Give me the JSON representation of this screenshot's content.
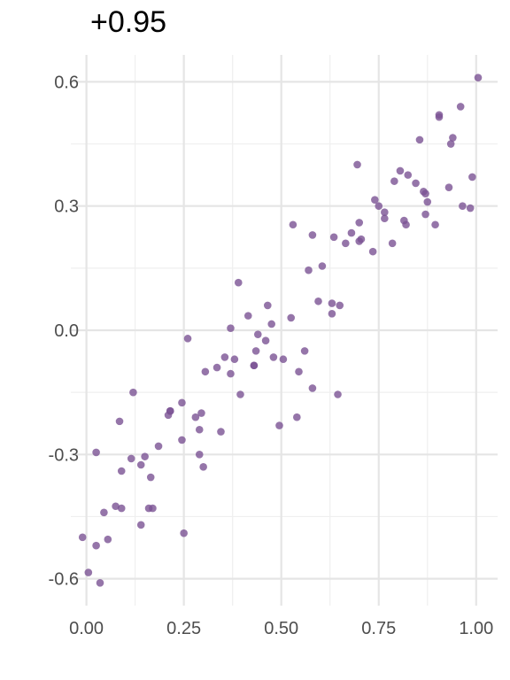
{
  "chart_data": {
    "type": "scatter",
    "title": "+0.95",
    "xlabel": "",
    "ylabel": "",
    "xlim": [
      -0.04,
      1.055
    ],
    "ylim": [
      -0.665,
      0.665
    ],
    "x_ticks": [
      0.0,
      0.25,
      0.5,
      0.75,
      1.0
    ],
    "x_tick_labels": [
      "0.00",
      "0.25",
      "0.50",
      "0.75",
      "1.00"
    ],
    "y_ticks": [
      -0.6,
      -0.3,
      0.0,
      0.3,
      0.6
    ],
    "y_tick_labels": [
      "-0.6",
      "-0.3",
      "0.0",
      "0.3",
      "0.6"
    ],
    "grid": true,
    "point_color": "#7b5394",
    "points": [
      [
        -0.01,
        -0.5
      ],
      [
        0.005,
        -0.585
      ],
      [
        0.025,
        -0.52
      ],
      [
        0.025,
        -0.295
      ],
      [
        0.035,
        -0.61
      ],
      [
        0.045,
        -0.44
      ],
      [
        0.055,
        -0.505
      ],
      [
        0.075,
        -0.425
      ],
      [
        0.085,
        -0.22
      ],
      [
        0.09,
        -0.34
      ],
      [
        0.09,
        -0.43
      ],
      [
        0.115,
        -0.31
      ],
      [
        0.12,
        -0.15
      ],
      [
        0.14,
        -0.325
      ],
      [
        0.14,
        -0.47
      ],
      [
        0.15,
        -0.305
      ],
      [
        0.16,
        -0.43
      ],
      [
        0.165,
        -0.355
      ],
      [
        0.17,
        -0.43
      ],
      [
        0.185,
        -0.28
      ],
      [
        0.21,
        -0.205
      ],
      [
        0.215,
        -0.195
      ],
      [
        0.215,
        -0.195
      ],
      [
        0.245,
        -0.175
      ],
      [
        0.245,
        -0.265
      ],
      [
        0.25,
        -0.49
      ],
      [
        0.26,
        -0.02
      ],
      [
        0.28,
        -0.21
      ],
      [
        0.29,
        -0.3
      ],
      [
        0.29,
        -0.24
      ],
      [
        0.295,
        -0.2
      ],
      [
        0.3,
        -0.33
      ],
      [
        0.305,
        -0.1
      ],
      [
        0.335,
        -0.09
      ],
      [
        0.345,
        -0.245
      ],
      [
        0.355,
        -0.065
      ],
      [
        0.37,
        -0.105
      ],
      [
        0.37,
        0.005
      ],
      [
        0.38,
        -0.07
      ],
      [
        0.39,
        0.115
      ],
      [
        0.395,
        -0.155
      ],
      [
        0.415,
        0.035
      ],
      [
        0.43,
        -0.085
      ],
      [
        0.43,
        -0.085
      ],
      [
        0.435,
        -0.05
      ],
      [
        0.44,
        -0.01
      ],
      [
        0.46,
        -0.025
      ],
      [
        0.465,
        0.06
      ],
      [
        0.475,
        0.015
      ],
      [
        0.48,
        -0.065
      ],
      [
        0.495,
        -0.23
      ],
      [
        0.505,
        -0.07
      ],
      [
        0.525,
        0.03
      ],
      [
        0.53,
        0.255
      ],
      [
        0.54,
        -0.21
      ],
      [
        0.545,
        -0.1
      ],
      [
        0.56,
        -0.05
      ],
      [
        0.57,
        0.145
      ],
      [
        0.58,
        0.23
      ],
      [
        0.58,
        -0.14
      ],
      [
        0.595,
        0.07
      ],
      [
        0.605,
        0.155
      ],
      [
        0.63,
        0.065
      ],
      [
        0.63,
        0.04
      ],
      [
        0.635,
        0.225
      ],
      [
        0.645,
        -0.155
      ],
      [
        0.65,
        0.06
      ],
      [
        0.665,
        0.21
      ],
      [
        0.68,
        0.235
      ],
      [
        0.695,
        0.4
      ],
      [
        0.7,
        0.215
      ],
      [
        0.7,
        0.26
      ],
      [
        0.705,
        0.22
      ],
      [
        0.735,
        0.19
      ],
      [
        0.74,
        0.315
      ],
      [
        0.75,
        0.3
      ],
      [
        0.765,
        0.27
      ],
      [
        0.765,
        0.285
      ],
      [
        0.785,
        0.21
      ],
      [
        0.79,
        0.36
      ],
      [
        0.805,
        0.385
      ],
      [
        0.815,
        0.265
      ],
      [
        0.82,
        0.255
      ],
      [
        0.825,
        0.375
      ],
      [
        0.845,
        0.355
      ],
      [
        0.855,
        0.46
      ],
      [
        0.865,
        0.335
      ],
      [
        0.87,
        0.28
      ],
      [
        0.87,
        0.33
      ],
      [
        0.875,
        0.31
      ],
      [
        0.895,
        0.255
      ],
      [
        0.905,
        0.52
      ],
      [
        0.905,
        0.515
      ],
      [
        0.93,
        0.345
      ],
      [
        0.935,
        0.45
      ],
      [
        0.94,
        0.465
      ],
      [
        0.96,
        0.54
      ],
      [
        0.965,
        0.3
      ],
      [
        0.985,
        0.295
      ],
      [
        0.99,
        0.37
      ],
      [
        1.005,
        0.61
      ]
    ]
  }
}
